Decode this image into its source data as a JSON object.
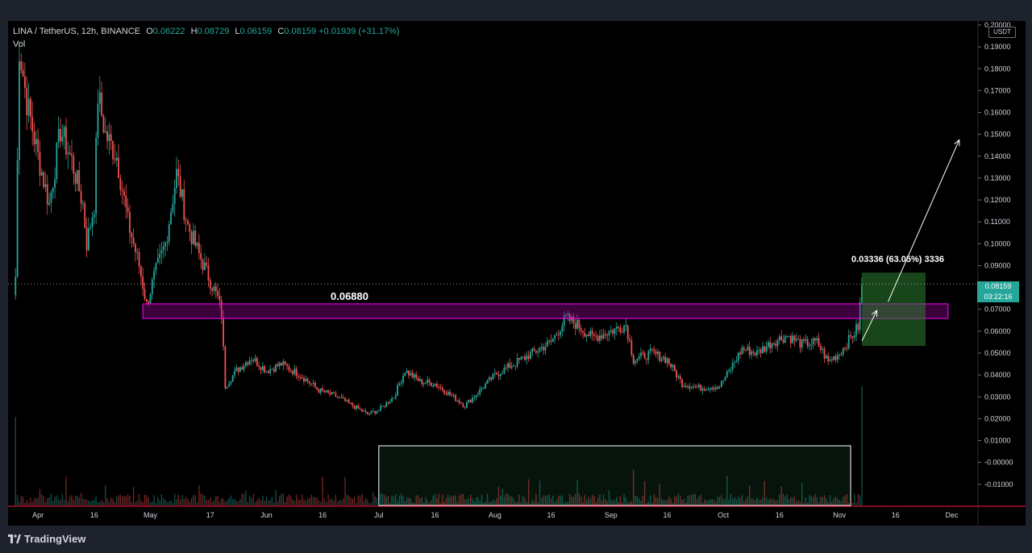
{
  "header": {
    "symbol": "LINA / TetherUS, 12h, BINANCE",
    "o_label": "O",
    "o_value": "0.06222",
    "h_label": "H",
    "h_value": "0.08729",
    "l_label": "L",
    "l_value": "0.06159",
    "c_label": "C",
    "c_value": "0.08159",
    "change": "+0.01939 (+31.17%)",
    "vol_label": "Vol"
  },
  "price_axis": {
    "currency": "USDT",
    "current_price": "0.08159",
    "countdown": "03:22:16"
  },
  "annotations": {
    "zone_price": "0.06880",
    "range_measure": "0.03336 (63.05%) 3336"
  },
  "footer": {
    "brand": "TradingView"
  },
  "colors": {
    "up": "#26a69a",
    "down": "#ef5350",
    "zone": "#ff00ff",
    "target_box": "#1b5e20",
    "red_line": "#ff1744"
  },
  "chart_data": {
    "type": "candlestick",
    "title": "LINA / TetherUS, 12h, BINANCE",
    "y_ticks": [
      "0.20000",
      "0.19000",
      "0.18000",
      "0.17000",
      "0.16000",
      "0.15000",
      "0.14000",
      "0.13000",
      "0.12000",
      "0.11000",
      "0.10000",
      "0.09000",
      "0.08000",
      "0.07000",
      "0.06000",
      "0.05000",
      "0.04000",
      "0.03000",
      "0.02000",
      "0.01000",
      "-0.00000",
      "-0.01000"
    ],
    "ylim": [
      -0.0145,
      0.2
    ],
    "x_ticks": [
      {
        "label": "Apr",
        "date": "2021-04-01"
      },
      {
        "label": "16",
        "date": "2021-04-16"
      },
      {
        "label": "May",
        "date": "2021-05-01"
      },
      {
        "label": "17",
        "date": "2021-05-17"
      },
      {
        "label": "Jun",
        "date": "2021-06-01"
      },
      {
        "label": "16",
        "date": "2021-06-16"
      },
      {
        "label": "Jul",
        "date": "2021-07-01"
      },
      {
        "label": "16",
        "date": "2021-07-16"
      },
      {
        "label": "Aug",
        "date": "2021-08-01"
      },
      {
        "label": "16",
        "date": "2021-08-16"
      },
      {
        "label": "Sep",
        "date": "2021-09-01"
      },
      {
        "label": "16",
        "date": "2021-09-16"
      },
      {
        "label": "Oct",
        "date": "2021-10-01"
      },
      {
        "label": "16",
        "date": "2021-10-16"
      },
      {
        "label": "Nov",
        "date": "2021-11-01"
      },
      {
        "label": "16",
        "date": "2021-11-16"
      },
      {
        "label": "Dec",
        "date": "2021-12-01"
      }
    ],
    "xlim": [
      "2021-03-24",
      "2021-12-08"
    ],
    "price_path": [
      [
        "2021-03-26",
        0.085
      ],
      [
        "2021-03-27",
        0.19
      ],
      [
        "2021-03-29",
        0.165
      ],
      [
        "2021-04-01",
        0.14
      ],
      [
        "2021-04-04",
        0.118
      ],
      [
        "2021-04-07",
        0.152
      ],
      [
        "2021-04-10",
        0.138
      ],
      [
        "2021-04-13",
        0.118
      ],
      [
        "2021-04-14",
        0.1
      ],
      [
        "2021-04-16",
        0.118
      ],
      [
        "2021-04-17",
        0.168
      ],
      [
        "2021-04-19",
        0.15
      ],
      [
        "2021-04-22",
        0.14
      ],
      [
        "2021-04-25",
        0.11
      ],
      [
        "2021-04-28",
        0.09
      ],
      [
        "2021-04-30",
        0.072
      ],
      [
        "2021-05-02",
        0.085
      ],
      [
        "2021-05-05",
        0.1
      ],
      [
        "2021-05-08",
        0.132
      ],
      [
        "2021-05-11",
        0.108
      ],
      [
        "2021-05-14",
        0.095
      ],
      [
        "2021-05-17",
        0.083
      ],
      [
        "2021-05-19",
        0.075
      ],
      [
        "2021-05-20",
        0.068
      ],
      [
        "2021-05-21",
        0.035
      ],
      [
        "2021-05-24",
        0.042
      ],
      [
        "2021-05-28",
        0.048
      ],
      [
        "2021-06-01",
        0.042
      ],
      [
        "2021-06-05",
        0.045
      ],
      [
        "2021-06-10",
        0.04
      ],
      [
        "2021-06-15",
        0.033
      ],
      [
        "2021-06-20",
        0.03
      ],
      [
        "2021-06-25",
        0.025
      ],
      [
        "2021-06-28",
        0.022
      ],
      [
        "2021-07-01",
        0.024
      ],
      [
        "2021-07-05",
        0.03
      ],
      [
        "2021-07-08",
        0.042
      ],
      [
        "2021-07-12",
        0.037
      ],
      [
        "2021-07-16",
        0.036
      ],
      [
        "2021-07-20",
        0.031
      ],
      [
        "2021-07-24",
        0.026
      ],
      [
        "2021-07-28",
        0.033
      ],
      [
        "2021-08-01",
        0.04
      ],
      [
        "2021-08-06",
        0.045
      ],
      [
        "2021-08-11",
        0.05
      ],
      [
        "2021-08-16",
        0.055
      ],
      [
        "2021-08-20",
        0.066
      ],
      [
        "2021-08-23",
        0.063
      ],
      [
        "2021-08-27",
        0.057
      ],
      [
        "2021-09-01",
        0.06
      ],
      [
        "2021-09-05",
        0.063
      ],
      [
        "2021-09-07",
        0.047
      ],
      [
        "2021-09-12",
        0.05
      ],
      [
        "2021-09-16",
        0.047
      ],
      [
        "2021-09-20",
        0.036
      ],
      [
        "2021-09-25",
        0.034
      ],
      [
        "2021-09-30",
        0.035
      ],
      [
        "2021-10-03",
        0.043
      ],
      [
        "2021-10-06",
        0.052
      ],
      [
        "2021-10-10",
        0.05
      ],
      [
        "2021-10-14",
        0.055
      ],
      [
        "2021-10-18",
        0.058
      ],
      [
        "2021-10-22",
        0.054
      ],
      [
        "2021-10-26",
        0.055
      ],
      [
        "2021-10-29",
        0.046
      ],
      [
        "2021-11-01",
        0.05
      ],
      [
        "2021-11-04",
        0.057
      ],
      [
        "2021-11-06",
        0.062
      ],
      [
        "2021-11-07",
        0.08159
      ]
    ],
    "series": [
      {
        "name": "LINA / TetherUS",
        "style": "candles"
      },
      {
        "name": "Vol",
        "style": "histogram"
      }
    ],
    "drawings": {
      "resistance_zone": {
        "price_low": 0.0658,
        "price_high": 0.0725,
        "from": "2021-04-29",
        "to": "2021-11-30"
      },
      "target_box": {
        "price_low": 0.0533,
        "price_high": 0.0868,
        "from": "2021-11-07",
        "to": "2021-11-24"
      },
      "current_price_line": 0.08159,
      "projection_arrows": [
        {
          "from": [
            "2021-11-07",
            0.0555
          ],
          "to": [
            "2021-11-11",
            0.0695
          ]
        },
        {
          "from": [
            "2021-11-14",
            0.0735
          ],
          "to": [
            "2021-12-03",
            0.1475
          ]
        }
      ],
      "volume_highlight": {
        "from": "2021-07-01",
        "to": "2021-11-04"
      }
    },
    "grid": false,
    "legend_position": "top-left"
  }
}
